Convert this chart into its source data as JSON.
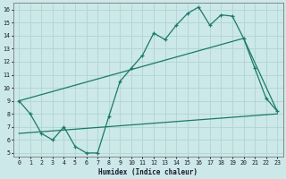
{
  "xlabel": "Humidex (Indice chaleur)",
  "xlim": [
    0,
    23
  ],
  "ylim": [
    5,
    16
  ],
  "xticks": [
    0,
    1,
    2,
    3,
    4,
    5,
    6,
    7,
    8,
    9,
    10,
    11,
    12,
    13,
    14,
    15,
    16,
    17,
    18,
    19,
    20,
    21,
    22,
    23
  ],
  "yticks": [
    5,
    6,
    7,
    8,
    9,
    10,
    11,
    12,
    13,
    14,
    15,
    16
  ],
  "bg_color": "#cce8e8",
  "grid_color": "#b0d4d4",
  "line_color": "#1a7a6a",
  "line1_x": [
    0,
    1,
    2,
    3,
    4,
    5,
    6,
    7,
    8,
    9,
    10,
    11,
    12,
    13,
    14,
    15,
    16,
    17,
    18,
    19,
    20,
    21,
    22,
    23
  ],
  "line1_y": [
    9.0,
    8.0,
    6.5,
    6.0,
    7.0,
    5.5,
    5.0,
    5.0,
    7.8,
    10.5,
    11.5,
    12.5,
    14.2,
    13.7,
    14.8,
    15.7,
    16.2,
    14.8,
    15.6,
    15.5,
    13.8,
    11.5,
    9.2,
    8.2
  ],
  "line2_x": [
    0,
    20,
    23
  ],
  "line2_y": [
    9.0,
    13.8,
    8.2
  ],
  "line3_x": [
    0,
    23
  ],
  "line3_y": [
    6.5,
    8.0
  ]
}
